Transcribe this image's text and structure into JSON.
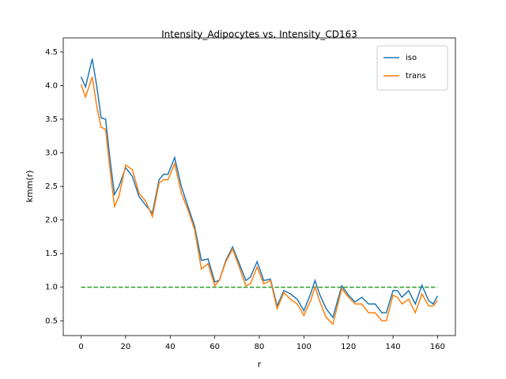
{
  "chart_data": {
    "type": "line",
    "title": "Intensity_Adipocytes vs. Intensity_CD163",
    "xlabel": "r",
    "ylabel": "kmm(r)",
    "x": [
      0,
      2,
      5,
      7,
      9,
      11,
      13,
      15,
      17,
      20,
      23,
      26,
      29,
      32,
      35,
      37,
      39,
      42,
      45,
      48,
      51,
      54,
      57,
      60,
      62,
      65,
      68,
      71,
      74,
      76,
      79,
      82,
      85,
      88,
      91,
      94,
      97,
      100,
      103,
      105,
      107,
      110,
      113,
      117,
      120,
      123,
      126,
      129,
      132,
      135,
      137,
      140,
      142,
      144,
      147,
      150,
      153,
      156,
      158,
      160
    ],
    "series": [
      {
        "name": "iso",
        "color": "#1f77b4",
        "values": [
          4.13,
          3.98,
          4.4,
          4.0,
          3.52,
          3.5,
          2.9,
          2.38,
          2.5,
          2.78,
          2.65,
          2.35,
          2.22,
          2.1,
          2.6,
          2.68,
          2.68,
          2.93,
          2.5,
          2.2,
          1.9,
          1.4,
          1.42,
          1.08,
          1.1,
          1.4,
          1.6,
          1.35,
          1.1,
          1.15,
          1.38,
          1.1,
          1.12,
          0.72,
          0.95,
          0.9,
          0.82,
          0.65,
          0.9,
          1.1,
          0.9,
          0.68,
          0.55,
          1.02,
          0.88,
          0.78,
          0.85,
          0.75,
          0.75,
          0.62,
          0.62,
          0.95,
          0.95,
          0.85,
          0.95,
          0.75,
          1.03,
          0.8,
          0.75,
          0.87
        ]
      },
      {
        "name": "trans",
        "color": "#ff7f0e",
        "values": [
          4.02,
          3.83,
          4.13,
          3.7,
          3.38,
          3.35,
          2.75,
          2.2,
          2.35,
          2.82,
          2.75,
          2.4,
          2.28,
          2.05,
          2.55,
          2.6,
          2.6,
          2.84,
          2.4,
          2.15,
          1.85,
          1.27,
          1.35,
          1.02,
          1.1,
          1.38,
          1.57,
          1.3,
          1.02,
          1.05,
          1.3,
          1.05,
          1.1,
          0.68,
          0.92,
          0.82,
          0.75,
          0.58,
          0.8,
          1.0,
          0.8,
          0.55,
          0.45,
          0.98,
          0.85,
          0.75,
          0.75,
          0.62,
          0.62,
          0.5,
          0.5,
          0.88,
          0.85,
          0.75,
          0.82,
          0.62,
          0.9,
          0.72,
          0.72,
          0.8
        ]
      }
    ],
    "hlines": [
      {
        "y": 1,
        "x": [
          0,
          160
        ],
        "color": "#2ca02c",
        "style": "dashed"
      }
    ],
    "xlim": [
      -8,
      168
    ],
    "ylim": [
      0.28,
      4.71
    ],
    "xticks": [
      0,
      20,
      40,
      60,
      80,
      100,
      120,
      140,
      160
    ],
    "yticks": [
      0.5,
      {
        "value": 1,
        "label": "1.0"
      },
      1.5,
      {
        "value": 2,
        "label": "2.0"
      },
      2.5,
      {
        "value": 3,
        "label": "3.0"
      },
      3.5,
      {
        "value": 4,
        "label": "4.0"
      },
      4.5
    ],
    "legend": "upper right",
    "grid": false
  }
}
